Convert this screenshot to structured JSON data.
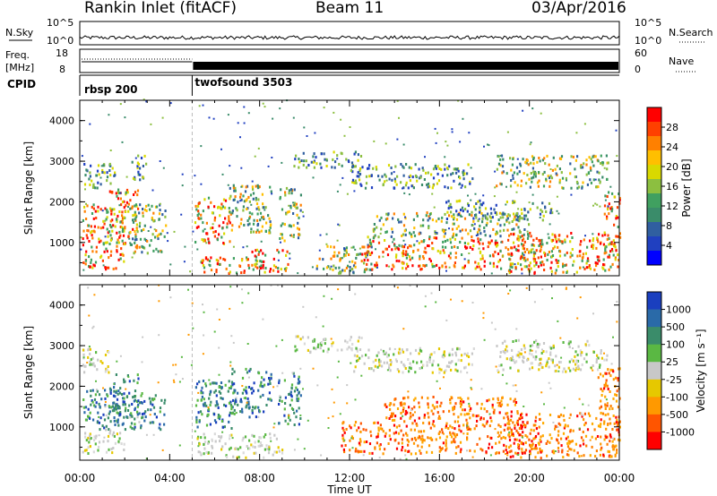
{
  "header": {
    "station": "Rankin Inlet (fitACF)",
    "beam": "Beam 11",
    "date": "03/Apr/2016"
  },
  "top_panel": {
    "left_label": "N.Sky",
    "left_ticks": [
      "10^5",
      "10^0"
    ],
    "right_ticks": [
      "10^5",
      "10^0"
    ],
    "right_label": "N.Search",
    "freq_label": "Freq.",
    "freq_unit": "[MHz]",
    "freq_ticks": [
      "18",
      "8"
    ],
    "nave_ticks": [
      "60",
      "0"
    ],
    "nave_label": "Nave",
    "cpid_label": "CPID",
    "cpid_modes": [
      {
        "name": "rbsp 200",
        "start_h": 0,
        "end_h": 5.0
      },
      {
        "name": "twofsound 3503",
        "start_h": 5.0,
        "end_h": 24
      }
    ]
  },
  "x_axis": {
    "label": "Time UT",
    "ticks": [
      "00:00",
      "04:00",
      "08:00",
      "12:00",
      "16:00",
      "20:00",
      "00:00"
    ]
  },
  "chart_data": [
    {
      "type": "heatmap",
      "name": "power",
      "ylabel": "Slant Range [km]",
      "xlim_hours": [
        0,
        24
      ],
      "ylim_km": [
        180,
        4500
      ],
      "yticks": [
        "1000",
        "2000",
        "3000",
        "4000"
      ],
      "colorbar": {
        "label": "Power [dB]",
        "ticks": [
          "28",
          "24",
          "20",
          "16",
          "12",
          "8",
          "4"
        ],
        "colors": [
          "#ff0000",
          "#ff4000",
          "#ff8000",
          "#ffbf00",
          "#d9d900",
          "#8cbf40",
          "#40a060",
          "#3a8c6a",
          "#305fa0",
          "#2040c0",
          "#0000ff"
        ]
      },
      "regions": [
        {
          "t": [
            0.1,
            2.0
          ],
          "r": [
            300,
            1900
          ],
          "level": "high"
        },
        {
          "t": [
            1.3,
            2.6
          ],
          "r": [
            1100,
            2300
          ],
          "level": "high"
        },
        {
          "t": [
            2.2,
            3.8
          ],
          "r": [
            700,
            1900
          ],
          "level": "mid"
        },
        {
          "t": [
            0.1,
            1.4
          ],
          "r": [
            2300,
            2900
          ],
          "level": "low"
        },
        {
          "t": [
            1.0,
            1.6
          ],
          "r": [
            2600,
            2900
          ],
          "level": "low"
        },
        {
          "t": [
            2.2,
            3.0
          ],
          "r": [
            2500,
            3100
          ],
          "level": "low"
        },
        {
          "t": [
            5.1,
            6.7
          ],
          "r": [
            900,
            2100
          ],
          "level": "high"
        },
        {
          "t": [
            5.2,
            7.5
          ],
          "r": [
            200,
            600
          ],
          "level": "high"
        },
        {
          "t": [
            6.6,
            8.5
          ],
          "r": [
            1200,
            2400
          ],
          "level": "mid"
        },
        {
          "t": [
            7.5,
            9.3
          ],
          "r": [
            200,
            800
          ],
          "level": "high"
        },
        {
          "t": [
            8.8,
            9.8
          ],
          "r": [
            1000,
            2300
          ],
          "level": "mid"
        },
        {
          "t": [
            10.5,
            13.0
          ],
          "r": [
            200,
            900
          ],
          "level": "mid"
        },
        {
          "t": [
            12.5,
            20.5
          ],
          "r": [
            300,
            1100
          ],
          "level": "high"
        },
        {
          "t": [
            13.0,
            20.0
          ],
          "r": [
            1100,
            1700
          ],
          "level": "mid"
        },
        {
          "t": [
            16.0,
            21.0
          ],
          "r": [
            1500,
            2000
          ],
          "level": "low"
        },
        {
          "t": [
            19.0,
            24.0
          ],
          "r": [
            200,
            1200
          ],
          "level": "high"
        },
        {
          "t": [
            18.5,
            23.5
          ],
          "r": [
            2300,
            3100
          ],
          "level": "mid"
        },
        {
          "t": [
            9.5,
            12.5
          ],
          "r": [
            2800,
            3200
          ],
          "level": "low"
        },
        {
          "t": [
            12.0,
            17.5
          ],
          "r": [
            2300,
            2900
          ],
          "level": "low"
        },
        {
          "t": [
            23.3,
            24.0
          ],
          "r": [
            600,
            2200
          ],
          "level": "high"
        }
      ]
    },
    {
      "type": "heatmap",
      "name": "velocity",
      "ylabel": "Slant Range [km]",
      "xlim_hours": [
        0,
        24
      ],
      "ylim_km": [
        180,
        4500
      ],
      "yticks": [
        "1000",
        "2000",
        "3000",
        "4000"
      ],
      "colorbar": {
        "label": "Velocity [m s⁻¹]",
        "ticks": [
          "1000",
          "500",
          "100",
          "25",
          "-25",
          "-100",
          "-500",
          "-1000"
        ],
        "colors": [
          "#1a3fbf",
          "#2a6aa8",
          "#3a8c6a",
          "#5ab843",
          "#c8c8c8",
          "#e6c800",
          "#ff9900",
          "#ff5500",
          "#ff0000"
        ]
      },
      "regions": [
        {
          "t": [
            0.1,
            2.0
          ],
          "r": [
            900,
            1900
          ],
          "level": "pos"
        },
        {
          "t": [
            1.3,
            2.6
          ],
          "r": [
            1100,
            2300
          ],
          "level": "pos"
        },
        {
          "t": [
            2.2,
            3.8
          ],
          "r": [
            900,
            1800
          ],
          "level": "pos"
        },
        {
          "t": [
            0.1,
            1.4
          ],
          "r": [
            2300,
            2900
          ],
          "level": "zero"
        },
        {
          "t": [
            0.1,
            2.0
          ],
          "r": [
            300,
            900
          ],
          "level": "zero"
        },
        {
          "t": [
            5.1,
            6.8
          ],
          "r": [
            900,
            2100
          ],
          "level": "pos"
        },
        {
          "t": [
            6.6,
            8.5
          ],
          "r": [
            1200,
            2400
          ],
          "level": "pos"
        },
        {
          "t": [
            8.8,
            9.8
          ],
          "r": [
            1000,
            2300
          ],
          "level": "pos"
        },
        {
          "t": [
            5.2,
            9.0
          ],
          "r": [
            200,
            800
          ],
          "level": "zero"
        },
        {
          "t": [
            11.5,
            20.5
          ],
          "r": [
            300,
            1100
          ],
          "level": "neg"
        },
        {
          "t": [
            13.5,
            19.5
          ],
          "r": [
            1100,
            1700
          ],
          "level": "neg"
        },
        {
          "t": [
            19.0,
            24.0
          ],
          "r": [
            200,
            1300
          ],
          "level": "neg"
        },
        {
          "t": [
            18.5,
            23.5
          ],
          "r": [
            2300,
            3100
          ],
          "level": "zero"
        },
        {
          "t": [
            9.5,
            12.5
          ],
          "r": [
            2800,
            3200
          ],
          "level": "zero"
        },
        {
          "t": [
            12.0,
            17.5
          ],
          "r": [
            2300,
            2900
          ],
          "level": "zero"
        },
        {
          "t": [
            23.0,
            24.0
          ],
          "r": [
            600,
            2400
          ],
          "level": "neg"
        }
      ]
    }
  ]
}
